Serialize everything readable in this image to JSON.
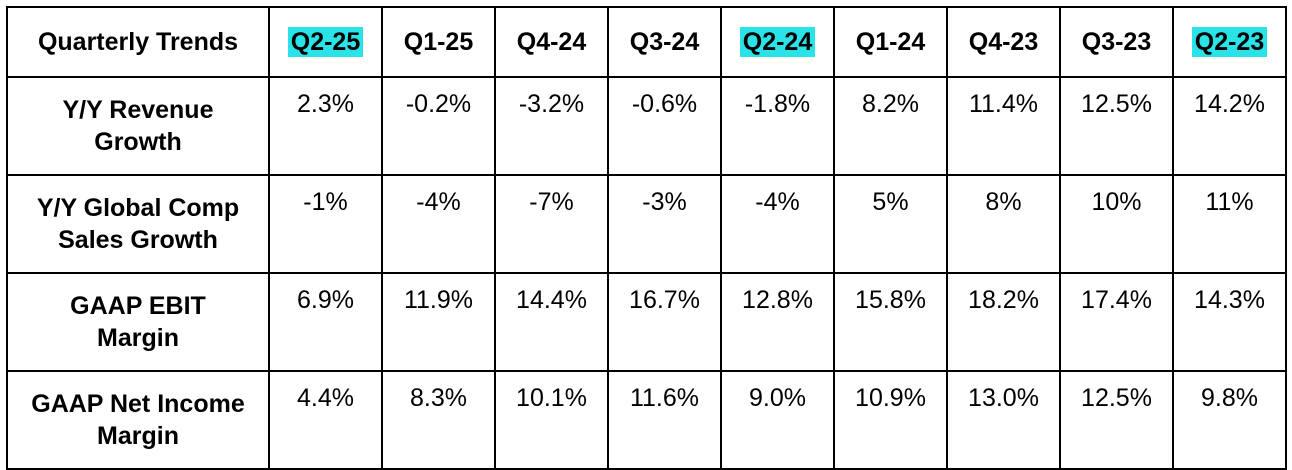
{
  "table": {
    "corner": "Quarterly Trends",
    "highlight_color": "#29E3E8",
    "columns": [
      {
        "label": "Q2-25",
        "highlighted": true
      },
      {
        "label": "Q1-25",
        "highlighted": false
      },
      {
        "label": "Q4-24",
        "highlighted": false
      },
      {
        "label": "Q3-24",
        "highlighted": false
      },
      {
        "label": "Q2-24",
        "highlighted": true
      },
      {
        "label": "Q1-24",
        "highlighted": false
      },
      {
        "label": "Q4-23",
        "highlighted": false
      },
      {
        "label": "Q3-23",
        "highlighted": false
      },
      {
        "label": "Q2-23",
        "highlighted": true
      }
    ],
    "rows": [
      {
        "label_line1": "Y/Y Revenue",
        "label_line2": "Growth",
        "values": [
          "2.3%",
          "-0.2%",
          "-3.2%",
          "-0.6%",
          "-1.8%",
          "8.2%",
          "11.4%",
          "12.5%",
          "14.2%"
        ]
      },
      {
        "label_line1": "Y/Y Global Comp",
        "label_line2": "Sales Growth",
        "values": [
          "-1%",
          "-4%",
          "-7%",
          "-3%",
          "-4%",
          "5%",
          "8%",
          "10%",
          "11%"
        ]
      },
      {
        "label_line1": "GAAP EBIT",
        "label_line2": "Margin",
        "values": [
          "6.9%",
          "11.9%",
          "14.4%",
          "16.7%",
          "12.8%",
          "15.8%",
          "18.2%",
          "17.4%",
          "14.3%"
        ]
      },
      {
        "label_line1": "GAAP Net Income",
        "label_line2": "Margin",
        "values": [
          "4.4%",
          "8.3%",
          "10.1%",
          "11.6%",
          "9.0%",
          "10.9%",
          "13.0%",
          "12.5%",
          "9.8%"
        ]
      }
    ]
  },
  "chart_data": {
    "type": "table",
    "title": "",
    "categories": [
      "Q2-25",
      "Q1-25",
      "Q4-24",
      "Q3-24",
      "Q2-24",
      "Q1-24",
      "Q4-23",
      "Q3-23",
      "Q2-23"
    ],
    "series": [
      {
        "name": "Y/Y Revenue Growth",
        "values": [
          2.3,
          -0.2,
          -3.2,
          -0.6,
          -1.8,
          8.2,
          11.4,
          12.5,
          14.2
        ]
      },
      {
        "name": "Y/Y Global Comp Sales Growth",
        "values": [
          -1,
          -4,
          -7,
          -3,
          -4,
          5,
          8,
          10,
          11
        ]
      },
      {
        "name": "GAAP EBIT Margin",
        "values": [
          6.9,
          11.9,
          14.4,
          16.7,
          12.8,
          15.8,
          18.2,
          17.4,
          14.3
        ]
      },
      {
        "name": "GAAP Net Income Margin",
        "values": [
          4.4,
          8.3,
          10.1,
          11.6,
          9.0,
          10.9,
          13.0,
          12.5,
          9.8
        ]
      }
    ]
  }
}
